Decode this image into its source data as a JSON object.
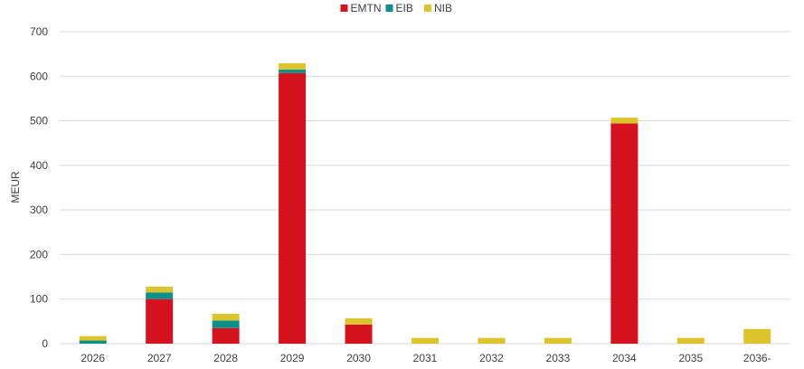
{
  "chart_data": {
    "type": "bar",
    "stacked": true,
    "title": "",
    "xlabel": "",
    "ylabel": "MEUR",
    "ylim": [
      0,
      700
    ],
    "yticks": [
      0,
      100,
      200,
      300,
      400,
      500,
      600,
      700
    ],
    "grid": true,
    "legend_position": "top",
    "categories": [
      "2026",
      "2027",
      "2028",
      "2029",
      "2030",
      "2031",
      "2032",
      "2033",
      "2034",
      "2035",
      "2036-"
    ],
    "series": [
      {
        "name": "EMTN",
        "color": "#d7121f",
        "values": [
          0,
          100,
          35,
          607,
          43,
          0,
          0,
          0,
          494,
          0,
          0
        ]
      },
      {
        "name": "EIB",
        "color": "#0e8f8a",
        "values": [
          7,
          15,
          17,
          8,
          0,
          0,
          0,
          0,
          0,
          0,
          0
        ]
      },
      {
        "name": "NIB",
        "color": "#dcc42c",
        "values": [
          10,
          13,
          15,
          14,
          14,
          13,
          13,
          13,
          13,
          13,
          33
        ]
      }
    ]
  }
}
